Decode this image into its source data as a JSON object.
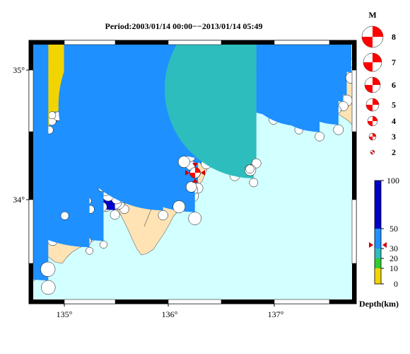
{
  "title": "Period:2003/01/14 00:00−−2013/01/14 05:49",
  "lon_labels": [
    "135°",
    "136°",
    "137°"
  ],
  "lat_labels": [
    "35°",
    "34°"
  ],
  "magnitude_legend": {
    "header": "M",
    "levels": [
      "8",
      "7",
      "6",
      "5",
      "4",
      "3",
      "2"
    ]
  },
  "depth_legend": {
    "ticks": [
      "100",
      "50",
      "30",
      "20",
      "10",
      "0"
    ],
    "unit_label": "Depth(km)",
    "colors": {
      "0-10": "#f2d400",
      "10-20": "#2ecc2e",
      "20-30": "#2ebdbd",
      "30-50": "#1e90ff",
      "50-100": "#0000c8"
    }
  },
  "map_colors": {
    "sea": "#d2ffff",
    "land": "#ffe3b4",
    "border": "#000000",
    "mainshock": "#ff0000"
  }
}
